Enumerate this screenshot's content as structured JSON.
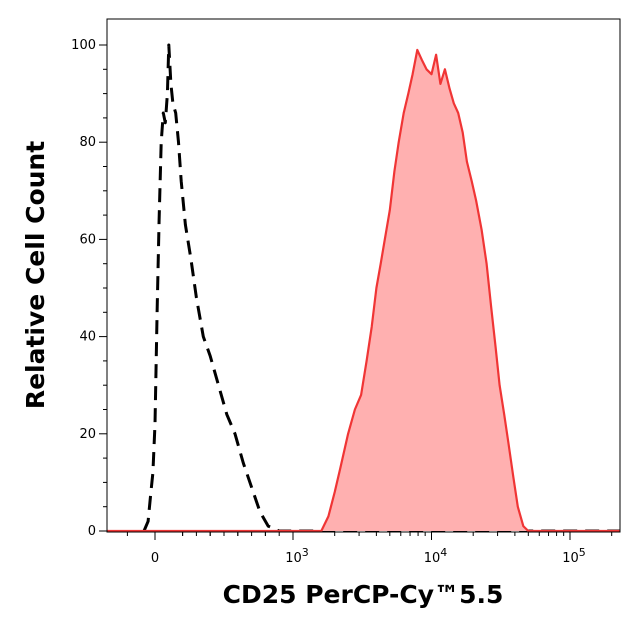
{
  "chart_data": {
    "type": "area",
    "title": "",
    "xlabel": "CD25 PerCP-Cy™5.5",
    "ylabel": "Relative Cell Count",
    "x_scale": "biexponential",
    "x_ticks": [
      {
        "value": 0,
        "label": "0"
      },
      {
        "value": 1000,
        "base": "10",
        "exp": "3"
      },
      {
        "value": 10000,
        "base": "10",
        "exp": "4"
      },
      {
        "value": 100000,
        "base": "10",
        "exp": "5"
      }
    ],
    "y_ticks": [
      0,
      20,
      40,
      60,
      80,
      100
    ],
    "ylim": [
      0,
      100
    ],
    "grid": false,
    "series": [
      {
        "style": "dashed-outline",
        "color": "#000000",
        "points": [
          [
            -80,
            0
          ],
          [
            -50,
            2
          ],
          [
            -30,
            8
          ],
          [
            -15,
            12
          ],
          [
            0,
            22
          ],
          [
            15,
            45
          ],
          [
            30,
            64
          ],
          [
            45,
            80
          ],
          [
            60,
            86
          ],
          [
            75,
            84
          ],
          [
            90,
            90
          ],
          [
            100,
            100
          ],
          [
            115,
            92
          ],
          [
            130,
            88
          ],
          [
            150,
            86
          ],
          [
            170,
            80
          ],
          [
            190,
            72
          ],
          [
            220,
            63
          ],
          [
            260,
            56
          ],
          [
            300,
            48
          ],
          [
            350,
            40
          ],
          [
            400,
            36
          ],
          [
            460,
            30
          ],
          [
            520,
            24
          ],
          [
            580,
            20
          ],
          [
            640,
            14
          ],
          [
            700,
            9
          ],
          [
            760,
            4
          ],
          [
            820,
            1
          ],
          [
            900,
            0
          ]
        ]
      },
      {
        "style": "filled",
        "color": "#f03535",
        "fill": "#ffb0b0",
        "points": [
          [
            1600,
            0
          ],
          [
            1800,
            3
          ],
          [
            2000,
            8
          ],
          [
            2200,
            13
          ],
          [
            2500,
            20
          ],
          [
            2800,
            25
          ],
          [
            3100,
            28
          ],
          [
            3400,
            35
          ],
          [
            3700,
            42
          ],
          [
            4000,
            50
          ],
          [
            4300,
            55
          ],
          [
            4600,
            60
          ],
          [
            5000,
            66
          ],
          [
            5400,
            74
          ],
          [
            5800,
            80
          ],
          [
            6300,
            86
          ],
          [
            6800,
            90
          ],
          [
            7300,
            94
          ],
          [
            7900,
            99
          ],
          [
            8500,
            97
          ],
          [
            9200,
            95
          ],
          [
            10000,
            94
          ],
          [
            10800,
            98
          ],
          [
            11600,
            92
          ],
          [
            12500,
            95
          ],
          [
            13500,
            91
          ],
          [
            14500,
            88
          ],
          [
            15600,
            86
          ],
          [
            16800,
            82
          ],
          [
            18000,
            76
          ],
          [
            19500,
            72
          ],
          [
            21000,
            68
          ],
          [
            23000,
            62
          ],
          [
            25000,
            55
          ],
          [
            27000,
            46
          ],
          [
            29000,
            38
          ],
          [
            31000,
            30
          ],
          [
            33500,
            24
          ],
          [
            36000,
            18
          ],
          [
            39000,
            11
          ],
          [
            42000,
            5
          ],
          [
            46000,
            1
          ],
          [
            50000,
            0
          ]
        ]
      }
    ]
  }
}
